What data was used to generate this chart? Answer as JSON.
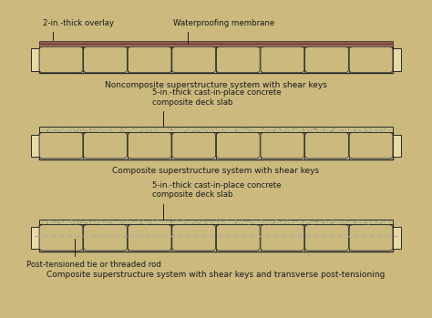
{
  "bg_color": "#cbb97e",
  "beam_fill": "#e8d9a8",
  "beam_edge": "#2a2a2a",
  "overlay_color": "#9b5a4a",
  "membrane_color": "#b07060",
  "slab_fill": "#d8cc98",
  "text_color": "#1a1a1a",
  "rod_color": "#aaaaaa",
  "n_beams": 8,
  "fig_w": 4.74,
  "fig_h": 3.49,
  "dpi": 100,
  "diag1": {
    "title": "Noncomposite superstructure system with shear keys",
    "label_overlay": "2-in.-thick overlay",
    "label_membrane": "Waterproofing membrane"
  },
  "diag2": {
    "title": "Composite superstructure system with shear keys",
    "label_slab": "5-in.-thick cast-in-place concrete\ncomposite deck slab"
  },
  "diag3": {
    "title": "Composite superstructure system with shear keys and transverse post-tensioning",
    "label_slab": "5-in.-thick cast-in-place concrete\ncomposite deck slab",
    "label_rod": "Post-tensioned tie or threaded rod"
  }
}
